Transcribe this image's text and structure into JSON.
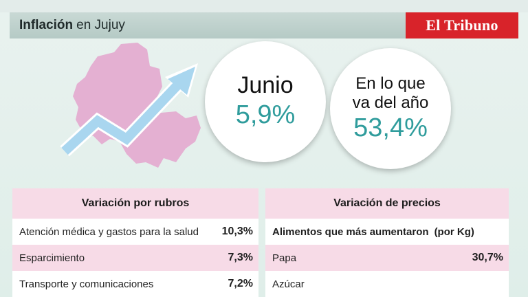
{
  "header": {
    "title_bold": "Inflación",
    "title_rest": "en Jujuy",
    "brand": "El Tribuno",
    "accent_color": "#d8232a"
  },
  "highlights": [
    {
      "label": "Junio",
      "value": "5,9%"
    },
    {
      "label_line1": "En lo que",
      "label_line2": "va del año",
      "value": "53,4%"
    }
  ],
  "rubros": {
    "title": "Variación por rubros",
    "rows": [
      {
        "label": "Atención médica y gastos para la salud",
        "value": "10,3%"
      },
      {
        "label": "Esparcimiento",
        "value": "7,3%"
      },
      {
        "label": "Transporte y comunicaciones",
        "value": "7,2%"
      }
    ]
  },
  "precios": {
    "title": "Variación de precios",
    "subheading": "Alimentos que más aumentaron",
    "subheading_unit": "(por Kg)",
    "rows": [
      {
        "label": "Papa",
        "value": "30,7%"
      },
      {
        "label": "Azúcar",
        "value": ""
      }
    ]
  },
  "colors": {
    "value_teal": "#2f9c9c",
    "map_pink": "#e4b0d2",
    "arrow_blue": "#a9d6ef",
    "row_pink": "#f7dbe7"
  },
  "graphics": {
    "map": "jujuy-province-map",
    "arrow": "trend-up-arrow-icon"
  }
}
